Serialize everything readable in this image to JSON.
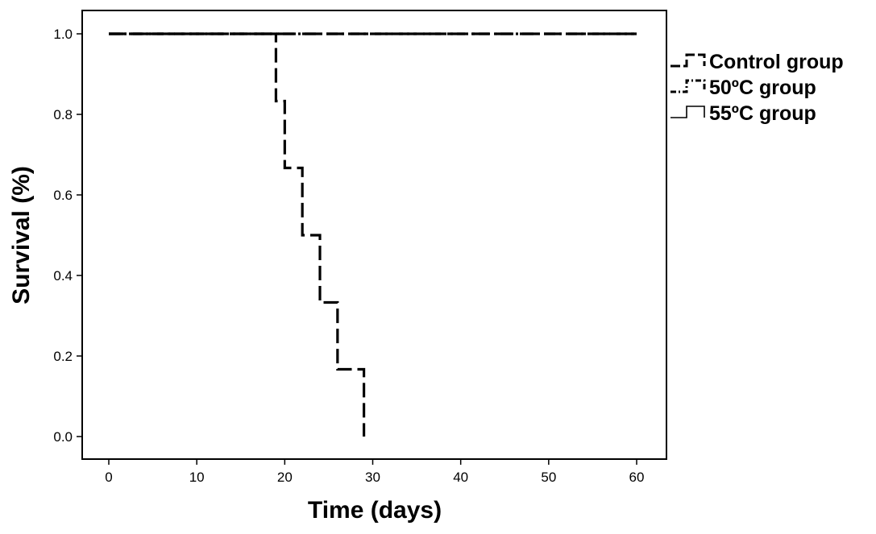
{
  "chart_data": {
    "type": "line",
    "subtype": "kaplan-meier-step",
    "title": "",
    "xlabel": "Time (days)",
    "ylabel": "Survival (%)",
    "xlim": [
      0,
      60
    ],
    "ylim": [
      0,
      1
    ],
    "xticks": [
      "0",
      "10",
      "20",
      "30",
      "40",
      "50",
      "60"
    ],
    "yticks": [
      "0.0",
      "0.2",
      "0.4",
      "0.6",
      "0.8",
      "1.0"
    ],
    "grid": false,
    "legend_position": "right, outside plot",
    "series": [
      {
        "name": "Control group",
        "line_style": "long-dash",
        "color": "#000000",
        "x": [
          0,
          60
        ],
        "y": [
          1.0,
          1.0
        ]
      },
      {
        "name": "50ºC group",
        "line_style": "dash-dot",
        "color": "#000000",
        "x": [
          0,
          60
        ],
        "y": [
          1.0,
          1.0
        ]
      },
      {
        "name": "55ºC group",
        "line_style": "solid",
        "color": "#000000",
        "x": [
          0,
          19,
          20,
          22,
          24,
          26,
          29,
          29
        ],
        "y": [
          1.0,
          0.833,
          0.667,
          0.5,
          0.333,
          0.167,
          0.0,
          0.0
        ]
      }
    ]
  }
}
